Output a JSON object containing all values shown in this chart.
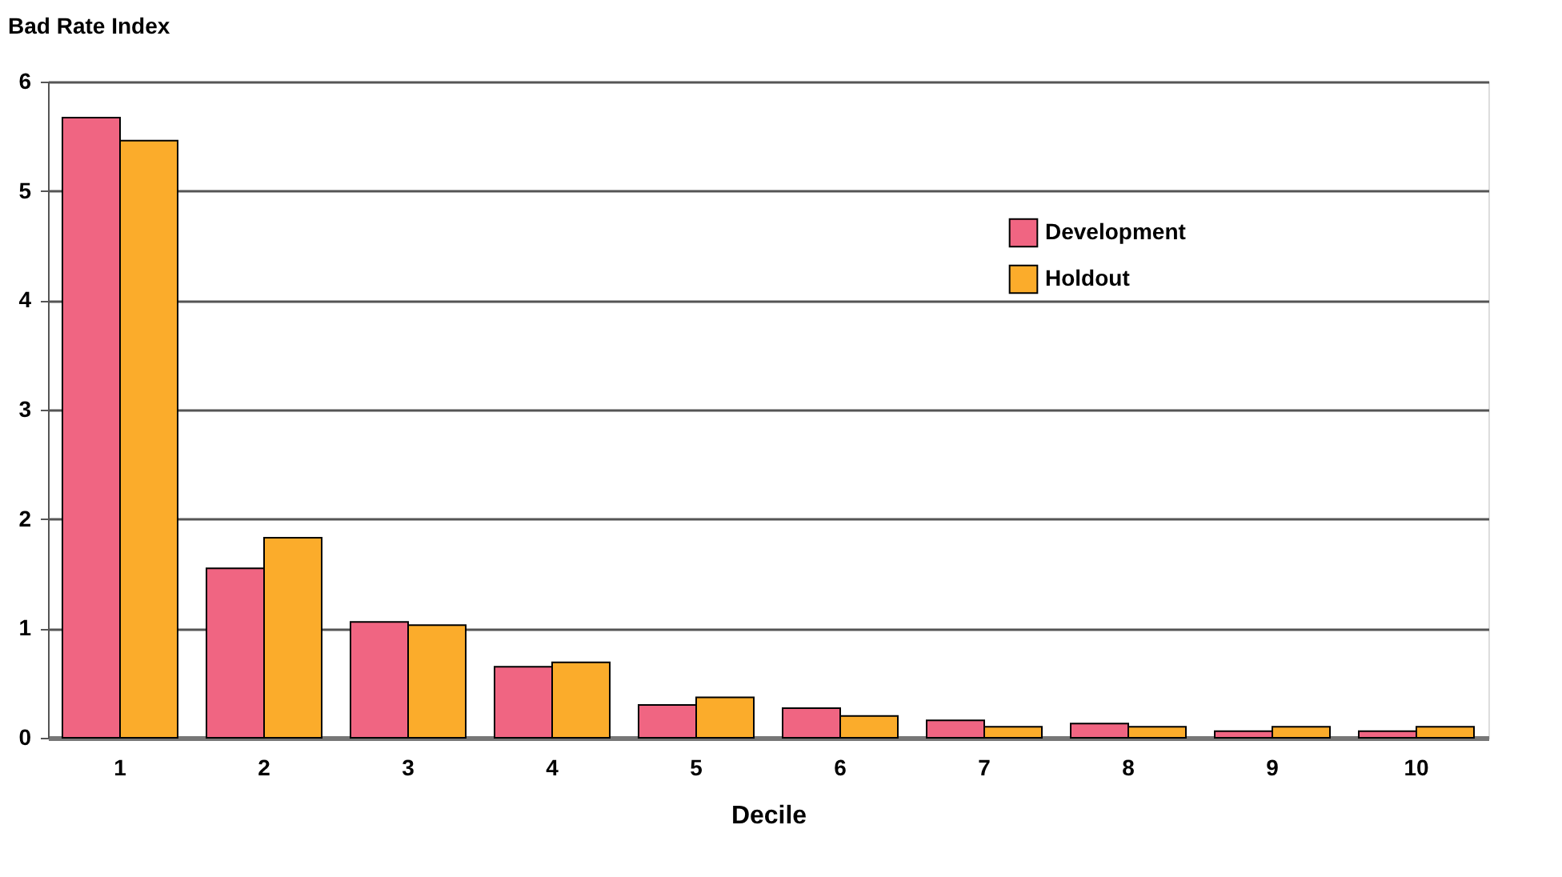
{
  "chart_data": {
    "type": "bar",
    "title": "Bad Rate Index",
    "xlabel": "Decile",
    "categories": [
      "1",
      "2",
      "3",
      "4",
      "5",
      "6",
      "7",
      "8",
      "9",
      "10"
    ],
    "series": [
      {
        "name": "Development",
        "color": "#f06582",
        "values": [
          5.67,
          1.55,
          1.06,
          0.65,
          0.3,
          0.27,
          0.16,
          0.13,
          0.06,
          0.06
        ]
      },
      {
        "name": "Holdout",
        "color": "#fbac2b",
        "values": [
          5.46,
          1.83,
          1.03,
          0.69,
          0.37,
          0.2,
          0.1,
          0.1,
          0.1,
          0.1
        ]
      }
    ],
    "ylim": [
      0,
      6
    ],
    "yticks": [
      0,
      1,
      2,
      3,
      4,
      5,
      6
    ],
    "grid": "y",
    "legend": "top right"
  }
}
